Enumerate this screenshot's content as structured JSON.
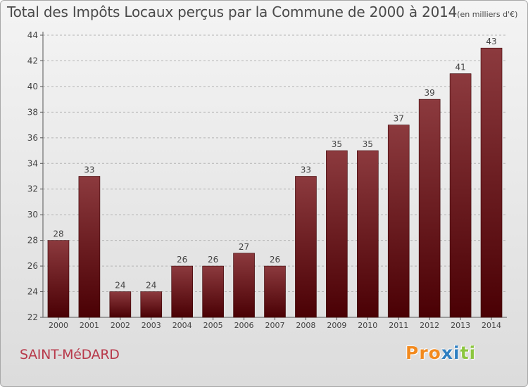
{
  "title": "Total des Impôts Locaux perçus par la Commune de 2000 à 2014",
  "title_unit": "(en milliers d'€)",
  "commune": "SAINT-MéDARD",
  "logo": "Proxiti",
  "colors": {
    "bar_top": "#8c3a3e",
    "bar_bottom": "#4a0004",
    "commune_text": "#b83a4b",
    "logo_letters": [
      "#f28a1e",
      "#f28a1e",
      "#f28a1e",
      "#2f7fc1",
      "#2f7fc1",
      "#8cc63f",
      "#8cc63f"
    ]
  },
  "chart_data": {
    "type": "bar",
    "categories": [
      "2000",
      "2001",
      "2002",
      "2003",
      "2004",
      "2005",
      "2006",
      "2007",
      "2008",
      "2009",
      "2010",
      "2011",
      "2012",
      "2013",
      "2014"
    ],
    "values": [
      28,
      33,
      24,
      24,
      26,
      26,
      27,
      26,
      33,
      35,
      35,
      37,
      39,
      41,
      43
    ],
    "data_labels": [
      "28",
      "33",
      "24",
      "24",
      "26",
      "26",
      "27",
      "26",
      "33",
      "35",
      "35",
      "37",
      "39",
      "41",
      "43"
    ],
    "y_ticks": [
      22,
      24,
      26,
      28,
      30,
      32,
      34,
      36,
      38,
      40,
      42,
      44
    ],
    "ylim": [
      22,
      44
    ],
    "grid": "horizontal dashed"
  }
}
